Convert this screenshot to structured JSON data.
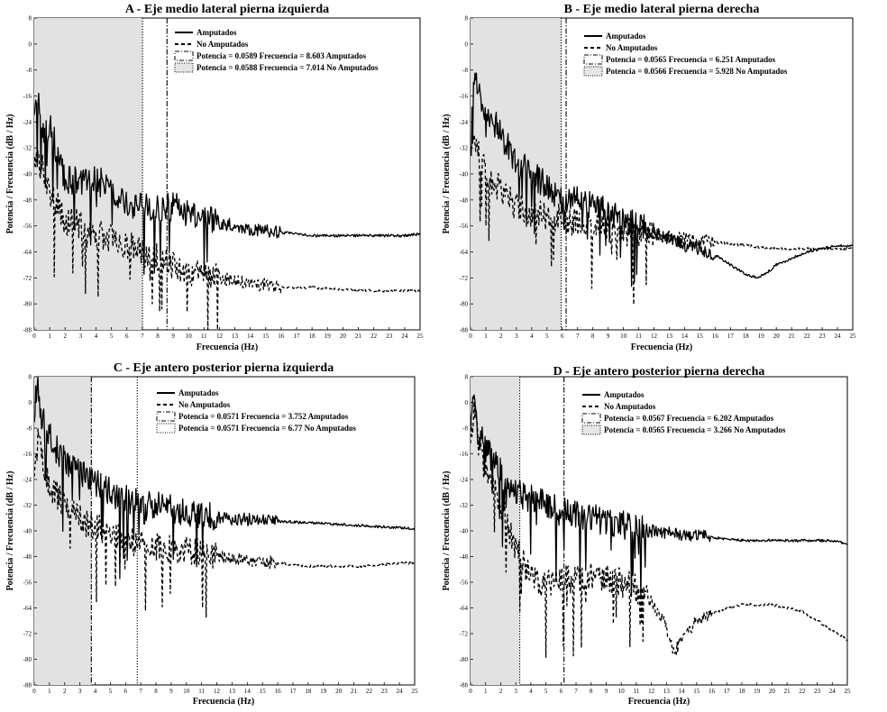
{
  "chart_data": [
    {
      "type": "line",
      "panel": "A",
      "title": "A - Eje medio lateral pierna izquierda",
      "xlabel": "Frecuencia (Hz)",
      "ylabel": "Potencia / Frecuencia (dB / Hz)",
      "xlim": [
        0,
        25
      ],
      "ylim": [
        -88,
        8
      ],
      "x_ticks": [
        0,
        1,
        2,
        3,
        4,
        5,
        6,
        7,
        8,
        9,
        10,
        11,
        12,
        13,
        14,
        15,
        16,
        17,
        18,
        19,
        20,
        21,
        22,
        23,
        24,
        25
      ],
      "y_ticks": [
        8,
        0,
        -8,
        -16,
        -24,
        -32,
        -40,
        -48,
        -56,
        -64,
        -72,
        -80,
        -88
      ],
      "shaded_region": [
        0,
        7.014
      ],
      "markers": [
        {
          "label": "Potencia = 0.0589   Frecuencia = 8.603 Amputados",
          "x": 8.603,
          "style": "dashdot"
        },
        {
          "label": "Potencia = 0.0588   Frecuencia = 7.014 No Amputados",
          "x": 7.014,
          "style": "dotted"
        }
      ],
      "legend": [
        "Amputados",
        "No Amputados"
      ],
      "series": [
        {
          "name": "Amputados",
          "style": "solid",
          "x": [
            0,
            0.3,
            0.6,
            1,
            1.5,
            2,
            3,
            4,
            5,
            6,
            7,
            8,
            9,
            10,
            11,
            12,
            14,
            16,
            18,
            20,
            22,
            24,
            25
          ],
          "y": [
            -20,
            -17,
            -27,
            -24,
            -34,
            -42,
            -42,
            -42,
            -44,
            -50,
            -50,
            -51,
            -50,
            -52,
            -54,
            -55,
            -57,
            -58,
            -59,
            -59,
            -59,
            -59,
            -58.5
          ]
        },
        {
          "name": "No Amputados",
          "style": "dashed",
          "x": [
            0,
            0.5,
            1,
            1.5,
            2,
            2.5,
            3,
            3.5,
            4,
            5,
            6,
            7,
            8,
            9,
            10,
            11,
            12,
            13,
            14,
            15,
            16,
            17,
            18,
            20,
            22,
            24,
            25
          ],
          "y": [
            -36,
            -38,
            -46,
            -49,
            -55,
            -54,
            -56,
            -60,
            -58,
            -60,
            -62,
            -64,
            -66,
            -68,
            -70,
            -71,
            -72,
            -73,
            -74,
            -74,
            -75,
            -75,
            -75,
            -75.5,
            -76,
            -76,
            -76
          ]
        }
      ]
    },
    {
      "type": "line",
      "panel": "B",
      "title": "B - Eje medio lateral pierna derecha",
      "xlabel": "Frecuencia (Hz)",
      "ylabel": "Potencia / Frecuencia (dB / Hz)",
      "xlim": [
        0,
        25
      ],
      "ylim": [
        -88,
        8
      ],
      "x_ticks": [
        0,
        1,
        2,
        3,
        4,
        5,
        6,
        7,
        8,
        9,
        10,
        11,
        12,
        13,
        14,
        15,
        16,
        17,
        18,
        19,
        20,
        21,
        22,
        23,
        24,
        25
      ],
      "y_ticks": [
        8,
        0,
        -8,
        -16,
        -24,
        -32,
        -40,
        -48,
        -56,
        -64,
        -72,
        -80,
        -88
      ],
      "shaded_region": [
        0,
        5.928
      ],
      "markers": [
        {
          "label": "Potencia = 0.0565   Frecuencia = 6.251 Amputados",
          "x": 6.251,
          "style": "dashdot"
        },
        {
          "label": "Potencia = 0.0566   Frecuencia = 5.928 No Amputados",
          "x": 5.928,
          "style": "dotted"
        }
      ],
      "legend": [
        "Amputados",
        "No Amputados"
      ],
      "series": [
        {
          "name": "Amputados",
          "style": "solid",
          "x": [
            0,
            0.3,
            0.6,
            1,
            2,
            3,
            4,
            5,
            6,
            7,
            8,
            9,
            10,
            11,
            12,
            13,
            14,
            15,
            16,
            17,
            18,
            18.8,
            19.5,
            20,
            21,
            22,
            23,
            24,
            25
          ],
          "y": [
            -30,
            -7,
            -16,
            -20,
            -28,
            -36,
            -40,
            -44,
            -48,
            -48,
            -50,
            -52,
            -54,
            -56,
            -58,
            -60,
            -62,
            -63,
            -65,
            -68,
            -71,
            -72,
            -70,
            -68,
            -66,
            -64,
            -63,
            -62,
            -62
          ]
        },
        {
          "name": "No Amputados",
          "style": "dashed",
          "x": [
            0,
            0.5,
            1,
            2,
            3,
            4,
            5,
            6,
            7,
            8,
            9,
            10,
            11,
            12,
            14,
            16,
            18,
            20,
            22,
            25
          ],
          "y": [
            -30,
            -34,
            -40,
            -45,
            -50,
            -52,
            -53,
            -54,
            -55,
            -56,
            -57,
            -58,
            -58,
            -59,
            -60,
            -61,
            -62,
            -63,
            -63,
            -63
          ]
        }
      ]
    },
    {
      "type": "line",
      "panel": "C",
      "title": "C - Eje antero posterior pierna izquierda",
      "xlabel": "Frecuencia (Hz)",
      "ylabel": "Potencia / Frecuencia (dB / Hz)",
      "xlim": [
        0,
        25
      ],
      "ylim": [
        -88,
        8
      ],
      "x_ticks": [
        0,
        1,
        2,
        3,
        4,
        5,
        6,
        7,
        8,
        9,
        10,
        11,
        12,
        13,
        14,
        15,
        16,
        17,
        18,
        19,
        20,
        21,
        22,
        23,
        24,
        25
      ],
      "y_ticks": [
        8,
        0,
        -8,
        -16,
        -24,
        -32,
        -40,
        -48,
        -56,
        -64,
        -72,
        -80,
        -88
      ],
      "shaded_region": [
        0,
        3.752
      ],
      "markers": [
        {
          "label": "Potencia = 0.0571   Frecuencia = 3.752 Amputados",
          "x": 3.752,
          "style": "dashdot"
        },
        {
          "label": "Potencia = 0.0571   Frecuencia = 6.77 No Amputados",
          "x": 6.77,
          "style": "dotted"
        }
      ],
      "legend": [
        "Amputados",
        "No Amputados"
      ],
      "series": [
        {
          "name": "Amputados",
          "style": "solid",
          "x": [
            0,
            0.2,
            0.5,
            1,
            1.5,
            2,
            3,
            4,
            5,
            6,
            7,
            8,
            9,
            10,
            11,
            12,
            14,
            16,
            18,
            20,
            22,
            24,
            25
          ],
          "y": [
            -5,
            7,
            -5,
            -10,
            -15,
            -18,
            -22,
            -25,
            -28,
            -30,
            -31,
            -32,
            -33,
            -34,
            -35,
            -36,
            -36.5,
            -37,
            -37.5,
            -38,
            -38.5,
            -39,
            -39.5
          ]
        },
        {
          "name": "No Amputados",
          "style": "dashed",
          "x": [
            0,
            0.3,
            0.6,
            1,
            2,
            3,
            4,
            5,
            6,
            7,
            8,
            9,
            10,
            11,
            12,
            14,
            16,
            18,
            20,
            22,
            24,
            25
          ],
          "y": [
            -22,
            -10,
            -22,
            -26,
            -32,
            -36,
            -39,
            -41,
            -43,
            -44,
            -45,
            -46,
            -46,
            -47,
            -48,
            -49,
            -50,
            -51,
            -51,
            -51,
            -50,
            -50
          ]
        }
      ]
    },
    {
      "type": "line",
      "panel": "D",
      "title": "D - Eje antero posterior pierna derecha",
      "xlabel": "Frecuencia (Hz)",
      "ylabel": "Potencia / Frecuencia (dB / Hz)",
      "xlim": [
        0,
        25
      ],
      "ylim": [
        -88,
        8
      ],
      "x_ticks": [
        0,
        1,
        2,
        3,
        4,
        5,
        6,
        7,
        8,
        9,
        10,
        11,
        12,
        13,
        14,
        15,
        16,
        17,
        18,
        19,
        20,
        21,
        22,
        23,
        24,
        25
      ],
      "y_ticks": [
        8,
        0,
        -8,
        -16,
        -24,
        -32,
        -40,
        -48,
        -56,
        -64,
        -72,
        -80,
        -88
      ],
      "shaded_region": [
        0,
        3.266
      ],
      "markers": [
        {
          "label": "Potencia = 0.0567   Frecuencia = 6.202 Amputados",
          "x": 6.202,
          "style": "dashdot"
        },
        {
          "label": "Potencia = 0.0565   Frecuencia = 3.266 No Amputados",
          "x": 3.266,
          "style": "dotted"
        }
      ],
      "legend": [
        "Amputados",
        "No Amputados"
      ],
      "series": [
        {
          "name": "Amputados",
          "style": "solid",
          "x": [
            0,
            0.2,
            0.5,
            1,
            2,
            3,
            4,
            5,
            6,
            7,
            8,
            9,
            10,
            11,
            12,
            14,
            16,
            18,
            20,
            22,
            24,
            25
          ],
          "y": [
            -8,
            0,
            -10,
            -14,
            -22,
            -28,
            -30,
            -32,
            -34,
            -35,
            -36,
            -37,
            -38,
            -39,
            -40,
            -41,
            -42,
            -43,
            -43,
            -43,
            -43,
            -44
          ]
        },
        {
          "name": "No Amputados",
          "style": "dashed",
          "x": [
            0,
            0.3,
            0.6,
            1,
            2,
            3,
            4,
            5,
            6,
            7,
            8,
            9,
            10,
            11,
            12,
            13,
            13.5,
            14,
            15,
            16,
            17,
            18,
            19,
            20,
            21,
            22,
            23,
            24,
            25
          ],
          "y": [
            -12,
            -2,
            -15,
            -22,
            -32,
            -45,
            -55,
            -57,
            -55,
            -55,
            -54,
            -55,
            -56,
            -58,
            -62,
            -70,
            -78,
            -74,
            -68,
            -66,
            -64,
            -63,
            -63,
            -63,
            -64,
            -65,
            -68,
            -71,
            -74
          ]
        }
      ]
    }
  ]
}
